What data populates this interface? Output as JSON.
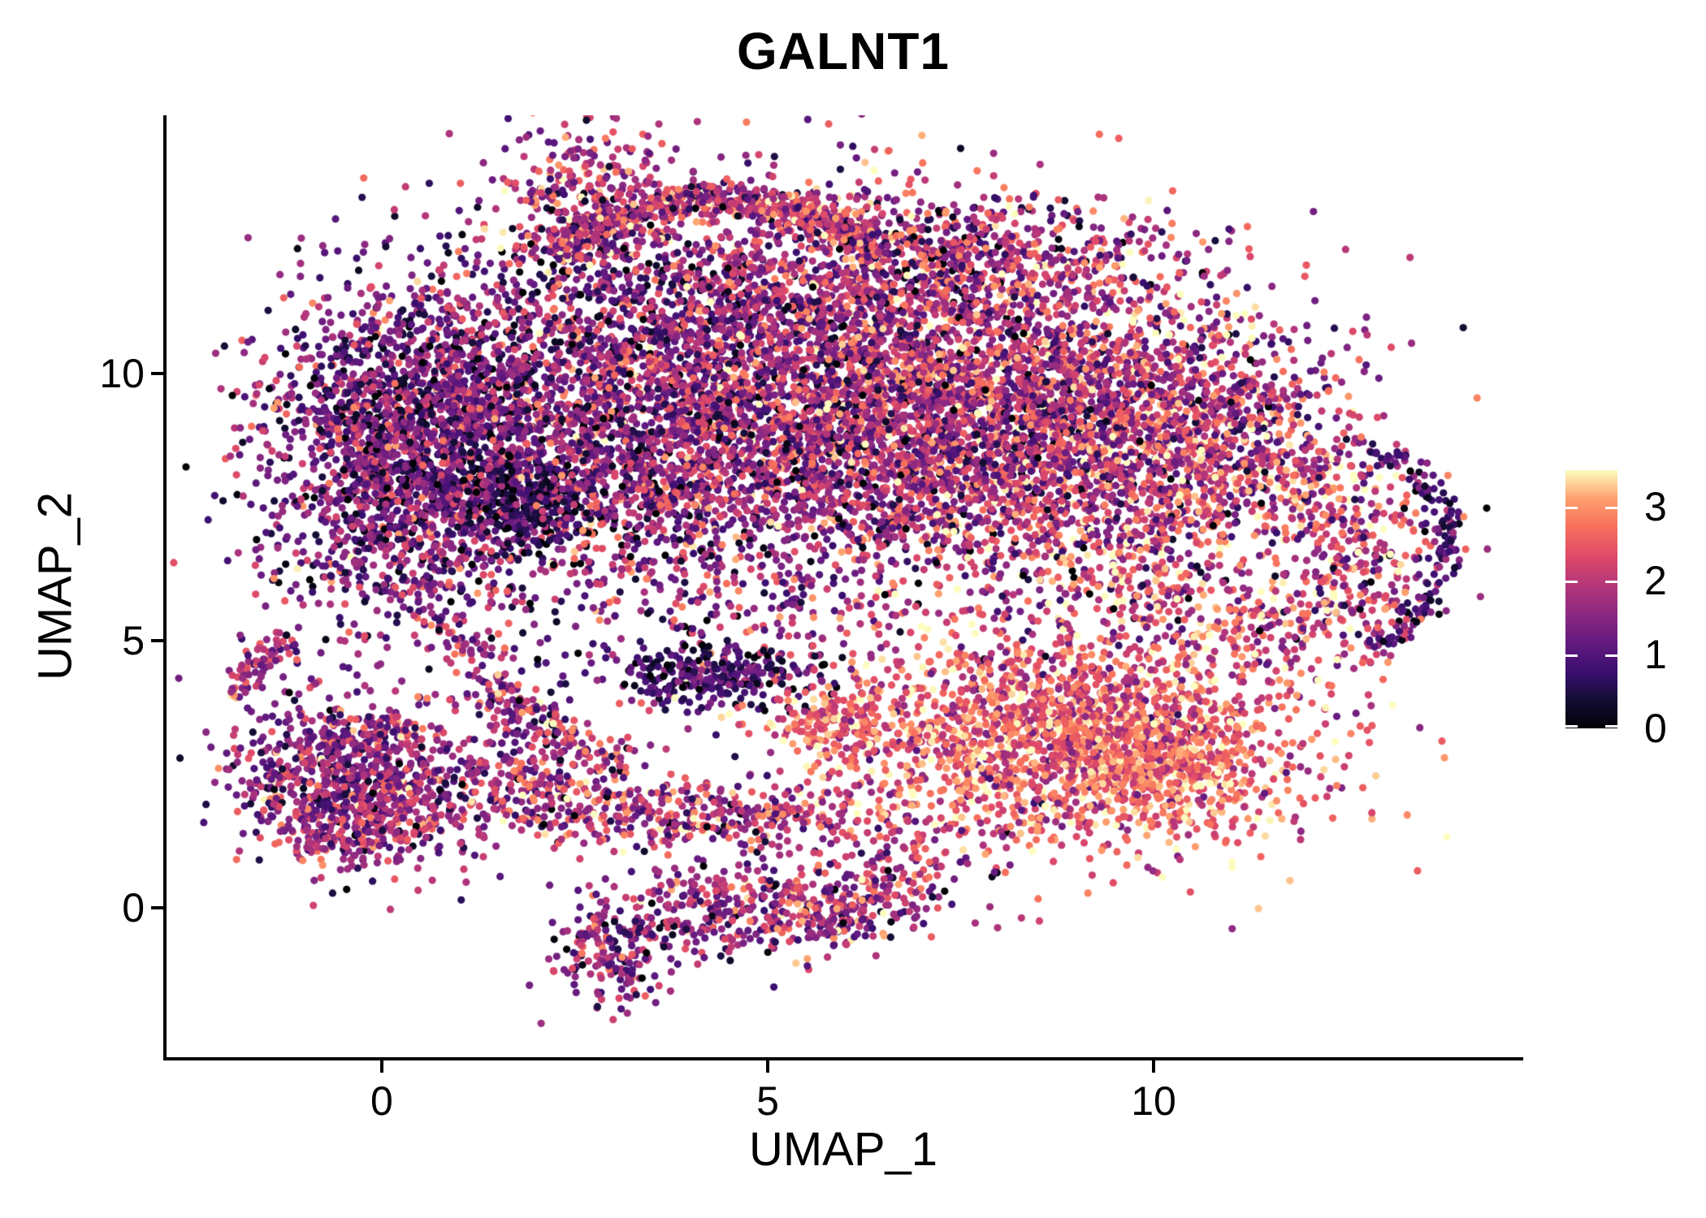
{
  "chart_data": {
    "type": "scatter",
    "title": "GALNT1",
    "xlabel": "UMAP_1",
    "ylabel": "UMAP_2",
    "xlim": [
      -2.789,
      14.747
    ],
    "ylim": [
      -2.796,
      14.833
    ],
    "x_ticks": [
      0,
      5,
      10
    ],
    "y_ticks": [
      0,
      5,
      10
    ],
    "grid": false,
    "panel_background": "#ffffff",
    "axis_color": "#000000",
    "point_radius_px": 4.6,
    "seed": 1337,
    "colorbar": {
      "position": "right",
      "min": 0,
      "max": 3.5,
      "ticks": [
        0,
        1,
        2,
        3
      ],
      "palette_name": "magma",
      "colors": [
        "#000004",
        "#140e36",
        "#3b0f70",
        "#641a80",
        "#8c2981",
        "#b5367a",
        "#de4968",
        "#f76f5c",
        "#fe9f6d",
        "#fcfdbf"
      ],
      "tick_color": "#ffffff"
    },
    "clusters": [
      {
        "name": "main-left",
        "shape": "gauss",
        "cx": 0.4,
        "cy": 8.6,
        "sx": 0.95,
        "sy": 1.55,
        "n": 2300,
        "em": 1.3,
        "es": 0.75
      },
      {
        "name": "main-center",
        "shape": "gauss",
        "cx": 3.4,
        "cy": 9.2,
        "sx": 1.35,
        "sy": 1.8,
        "n": 2600,
        "em": 1.5,
        "es": 0.8
      },
      {
        "name": "main-right",
        "shape": "gauss",
        "cx": 6.3,
        "cy": 9.4,
        "sx": 1.3,
        "sy": 1.7,
        "n": 2700,
        "em": 1.75,
        "es": 0.85
      },
      {
        "name": "main-far-right",
        "shape": "gauss",
        "cx": 8.7,
        "cy": 9.0,
        "sx": 1.15,
        "sy": 1.5,
        "n": 1800,
        "em": 1.95,
        "es": 0.85
      },
      {
        "name": "upper-right-band",
        "shape": "gauss",
        "cx": 7.6,
        "cy": 12.1,
        "sx": 1.5,
        "sy": 0.65,
        "n": 550,
        "em": 1.75,
        "es": 0.9
      },
      {
        "name": "right-upper-lobe",
        "shape": "gauss",
        "cx": 10.6,
        "cy": 9.2,
        "sx": 1.0,
        "sy": 1.05,
        "n": 750,
        "em": 2.0,
        "es": 0.9
      },
      {
        "name": "right-ring",
        "shape": "ring",
        "cx": 11.4,
        "cy": 6.6,
        "r": 1.55,
        "rs": 0.55,
        "n": 850,
        "em": 2.15,
        "es": 0.9
      },
      {
        "name": "right-dark-rim",
        "shape": "arc",
        "cx": 11.4,
        "cy": 6.8,
        "r": 2.4,
        "rs": 0.12,
        "a0": -55,
        "a1": 55,
        "n": 140,
        "em": 0.85,
        "es": 0.5
      },
      {
        "name": "dark-patch-left",
        "shape": "gauss",
        "cx": 1.8,
        "cy": 7.6,
        "sx": 0.5,
        "sy": 0.42,
        "n": 300,
        "em": 0.55,
        "es": 0.4
      },
      {
        "name": "dark-bottom-edge",
        "shape": "gauss",
        "cx": 4.3,
        "cy": 4.35,
        "sx": 0.75,
        "sy": 0.3,
        "n": 280,
        "em": 0.8,
        "es": 0.5
      },
      {
        "name": "bottom-right-high",
        "shape": "gauss",
        "cx": 8.9,
        "cy": 3.3,
        "sx": 1.55,
        "sy": 1.05,
        "n": 1900,
        "em": 2.45,
        "es": 0.65
      },
      {
        "name": "bottom-right-hotspot",
        "shape": "gauss",
        "cx": 10.1,
        "cy": 2.6,
        "sx": 0.75,
        "sy": 0.6,
        "n": 450,
        "em": 2.8,
        "es": 0.5
      },
      {
        "name": "orange-clump-mid",
        "shape": "gauss",
        "cx": 5.9,
        "cy": 3.4,
        "sx": 0.5,
        "sy": 0.35,
        "n": 170,
        "em": 2.5,
        "es": 0.6
      },
      {
        "name": "top-arc",
        "shape": "arc",
        "cx": 4.4,
        "cy": 10.5,
        "r": 2.75,
        "rs": 0.17,
        "a0": 38,
        "a1": 142,
        "n": 680,
        "em": 1.95,
        "es": 0.8
      },
      {
        "name": "top-wedge",
        "shape": "gauss",
        "cx": 2.6,
        "cy": 13.4,
        "sx": 0.55,
        "sy": 0.65,
        "n": 240,
        "em": 1.9,
        "es": 0.8
      },
      {
        "name": "top-sparse",
        "shape": "gauss",
        "cx": 4.6,
        "cy": 11.4,
        "sx": 1.9,
        "sy": 0.75,
        "n": 360,
        "em": 1.6,
        "es": 0.85
      },
      {
        "name": "strand-left",
        "shape": "line",
        "x0": 0.95,
        "y0": 5.3,
        "x1": 1.75,
        "y1": 3.1,
        "w": 0.2,
        "n": 90,
        "em": 1.6,
        "es": 0.7
      },
      {
        "name": "strand-diag",
        "shape": "line",
        "x0": 1.4,
        "y0": 4.0,
        "x1": 3.3,
        "y1": 2.6,
        "w": 0.18,
        "n": 130,
        "em": 1.8,
        "es": 0.8
      },
      {
        "name": "mid-band",
        "shape": "gauss",
        "cx": 4.0,
        "cy": 1.75,
        "sx": 1.8,
        "sy": 0.3,
        "n": 480,
        "em": 1.9,
        "es": 0.8
      },
      {
        "name": "mid-band-left",
        "shape": "gauss",
        "cx": 1.9,
        "cy": 2.4,
        "sx": 0.5,
        "sy": 0.33,
        "n": 150,
        "em": 1.8,
        "es": 0.75
      },
      {
        "name": "left-cluster",
        "shape": "gauss",
        "cx": -0.3,
        "cy": 2.3,
        "sx": 0.75,
        "sy": 0.78,
        "n": 1050,
        "em": 1.6,
        "es": 0.7
      },
      {
        "name": "left-hook",
        "shape": "arc",
        "cx": -0.35,
        "cy": 3.6,
        "r": 1.6,
        "rs": 0.1,
        "a0": 120,
        "a1": 168,
        "n": 70,
        "em": 1.9,
        "es": 0.7
      },
      {
        "name": "bottom-c1",
        "shape": "gauss",
        "cx": 3.0,
        "cy": -0.75,
        "sx": 0.4,
        "sy": 0.5,
        "n": 200,
        "em": 1.5,
        "es": 0.75
      },
      {
        "name": "bottom-c2",
        "shape": "gauss",
        "cx": 4.5,
        "cy": 0.05,
        "sx": 0.65,
        "sy": 0.5,
        "n": 240,
        "em": 1.6,
        "es": 0.8
      },
      {
        "name": "bottom-c3",
        "shape": "gauss",
        "cx": 5.8,
        "cy": -0.1,
        "sx": 0.55,
        "sy": 0.42,
        "n": 170,
        "em": 1.7,
        "es": 0.8
      },
      {
        "name": "bottom-c4",
        "shape": "gauss",
        "cx": 6.5,
        "cy": 0.55,
        "sx": 0.5,
        "sy": 0.45,
        "n": 150,
        "em": 1.8,
        "es": 0.8
      },
      {
        "name": "diffuse-scatter",
        "shape": "gauss",
        "cx": 6.0,
        "cy": 8.6,
        "sx": 3.6,
        "sy": 2.6,
        "n": 450,
        "em": 1.6,
        "es": 0.9
      }
    ]
  }
}
